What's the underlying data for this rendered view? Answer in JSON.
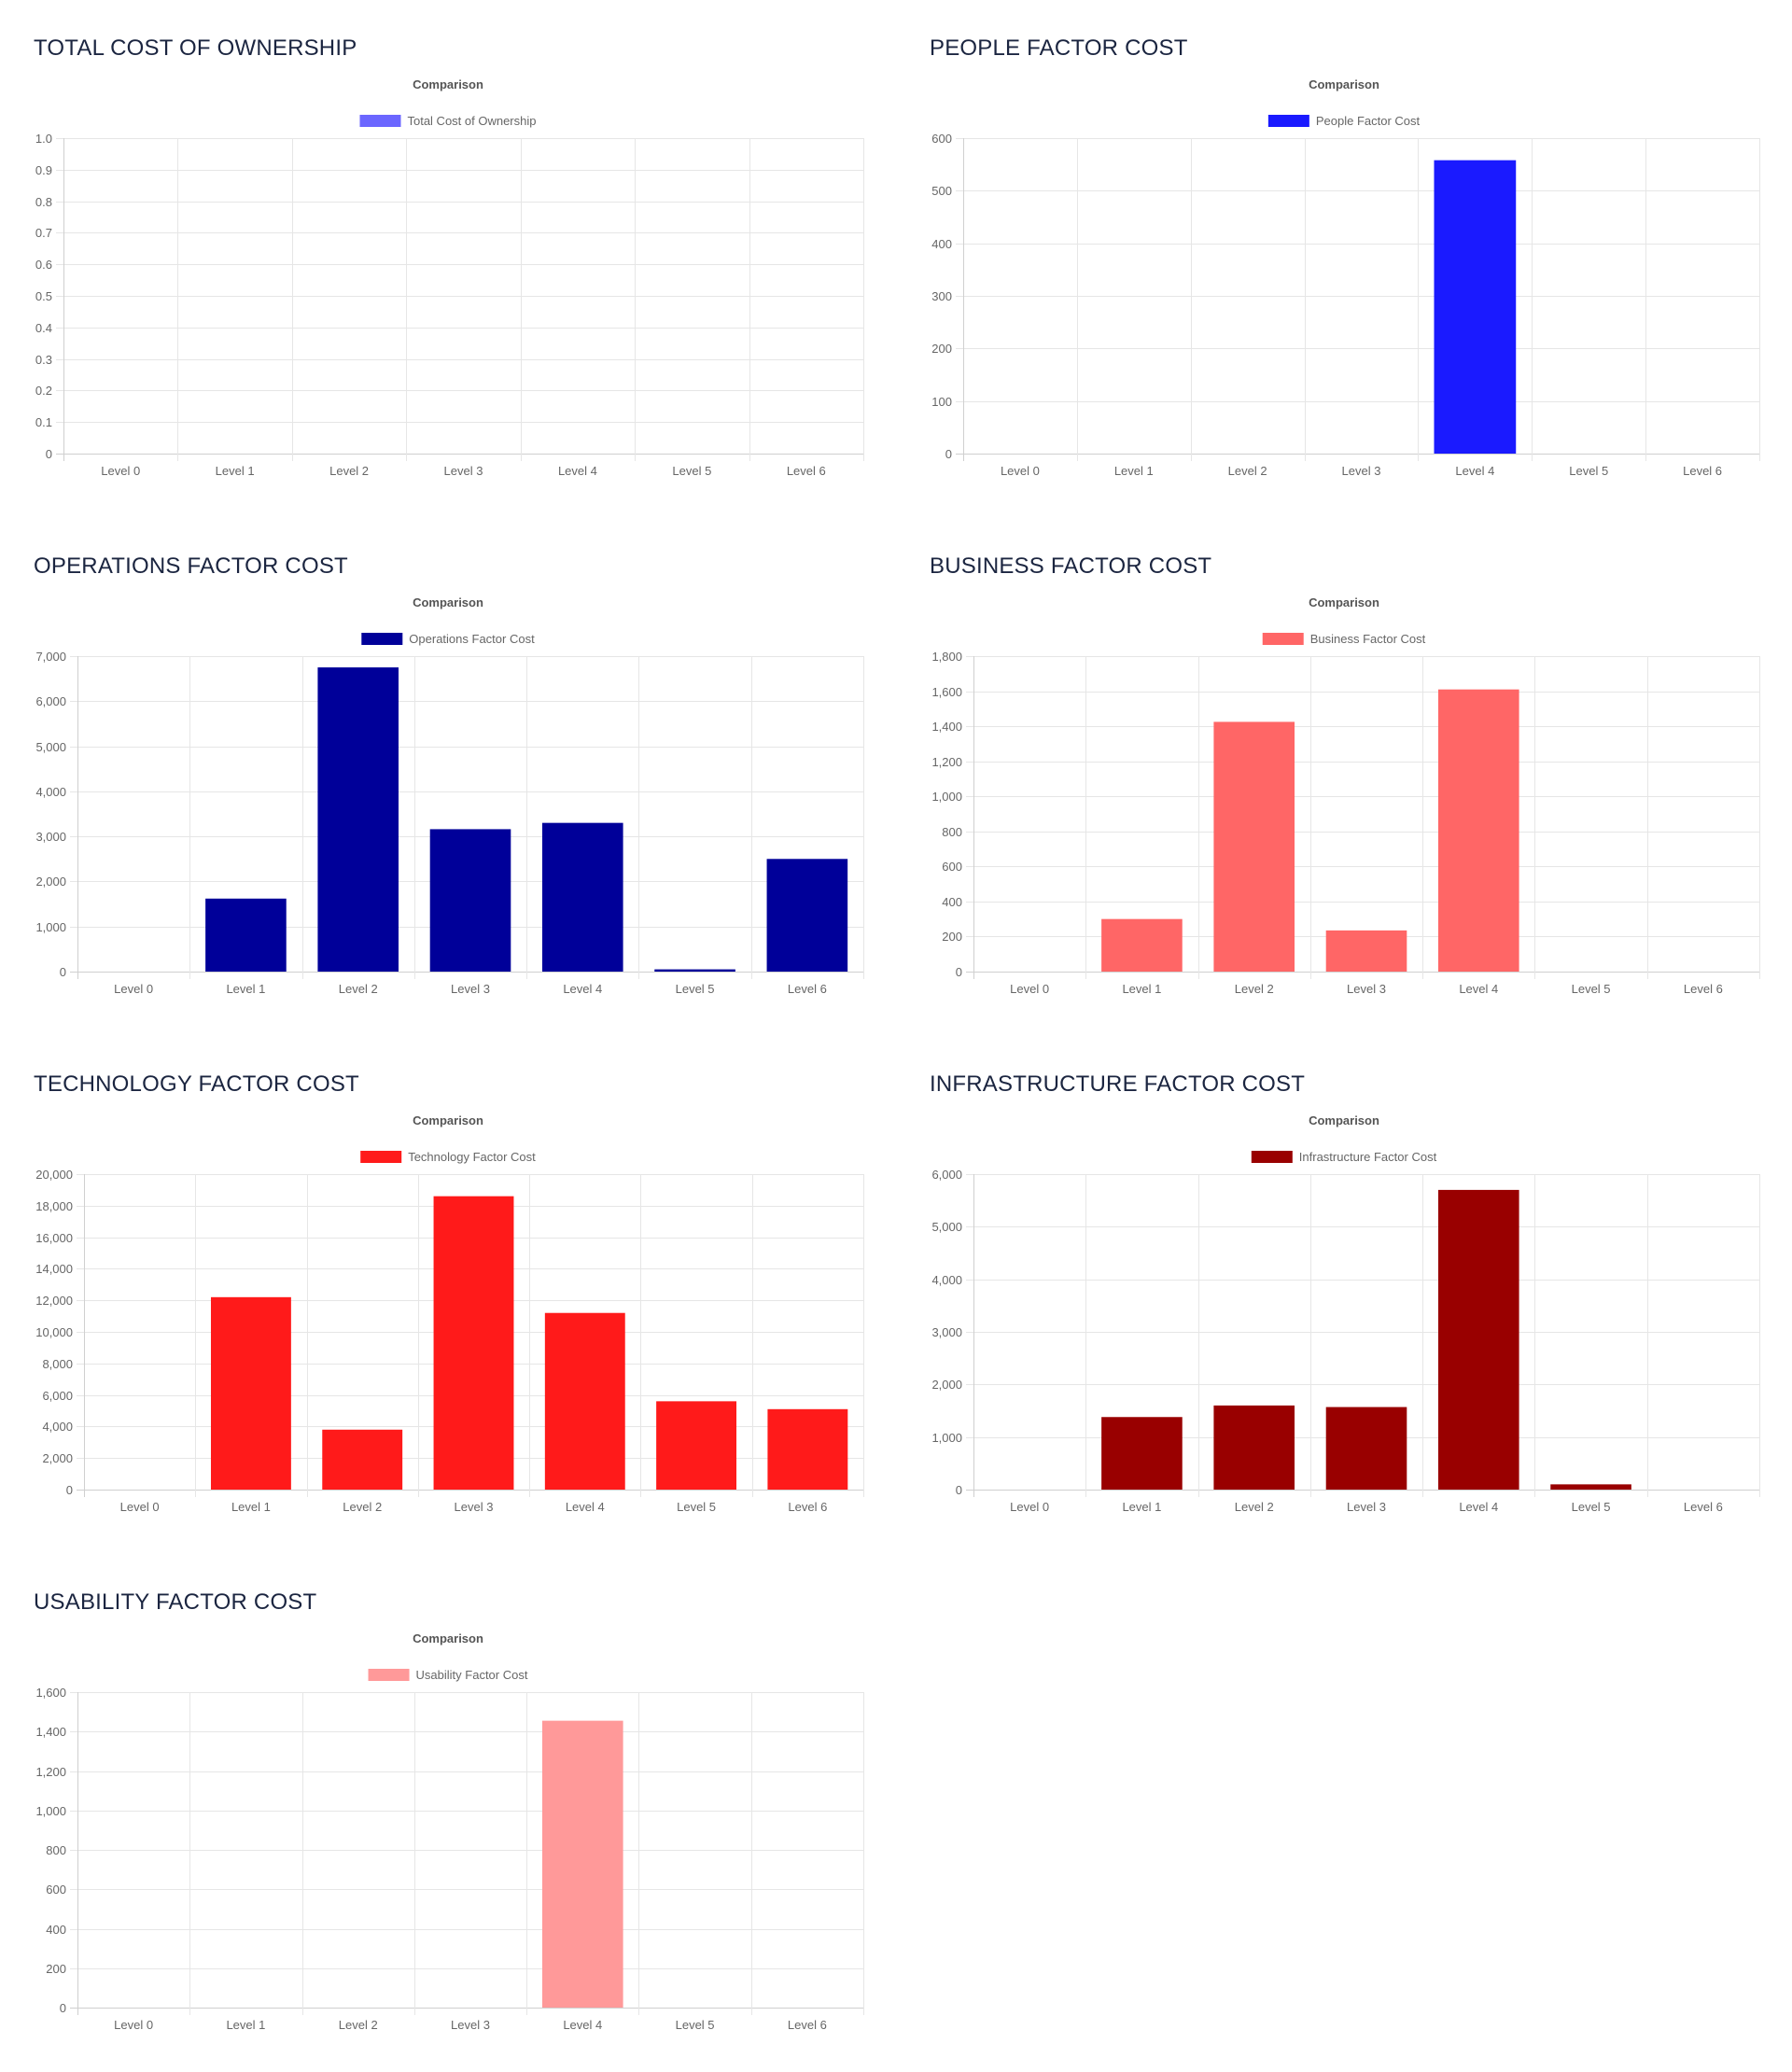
{
  "charts": [
    {
      "title": "TOTAL COST OF OWNERSHIP",
      "chart_data": {
        "type": "bar",
        "title": "Comparison",
        "categories": [
          "Level 0",
          "Level 1",
          "Level 2",
          "Level 3",
          "Level 4",
          "Level 5",
          "Level 6"
        ],
        "series": [
          {
            "name": "Total Cost of Ownership",
            "color": "#6b66ff",
            "values": [
              0,
              0,
              0,
              0,
              0,
              0,
              0
            ]
          }
        ],
        "ylim": [
          0,
          1.0
        ],
        "yticks": [
          0,
          0.1,
          0.2,
          0.3,
          0.4,
          0.5,
          0.6,
          0.7,
          0.8,
          0.9,
          1.0
        ],
        "ytick_labels": [
          "0",
          "0.1",
          "0.2",
          "0.3",
          "0.4",
          "0.5",
          "0.6",
          "0.7",
          "0.8",
          "0.9",
          "1.0"
        ],
        "legend": "top-center",
        "grid": true
      }
    },
    {
      "title": "PEOPLE FACTOR COST",
      "chart_data": {
        "type": "bar",
        "title": "Comparison",
        "categories": [
          "Level 0",
          "Level 1",
          "Level 2",
          "Level 3",
          "Level 4",
          "Level 5",
          "Level 6"
        ],
        "series": [
          {
            "name": "People Factor Cost",
            "color": "#1a1aff",
            "values": [
              0,
              0,
              0,
              0,
              558,
              0,
              0
            ]
          }
        ],
        "ylim": [
          0,
          600
        ],
        "yticks": [
          0,
          100,
          200,
          300,
          400,
          500,
          600
        ],
        "ytick_labels": [
          "0",
          "100",
          "200",
          "300",
          "400",
          "500",
          "600"
        ],
        "legend": "top-center",
        "grid": true
      }
    },
    {
      "title": "OPERATIONS FACTOR COST",
      "chart_data": {
        "type": "bar",
        "title": "Comparison",
        "categories": [
          "Level 0",
          "Level 1",
          "Level 2",
          "Level 3",
          "Level 4",
          "Level 5",
          "Level 6"
        ],
        "series": [
          {
            "name": "Operations Factor Cost",
            "color": "#000099",
            "values": [
              0,
              1620,
              6750,
              3160,
              3300,
              50,
              2500
            ]
          }
        ],
        "ylim": [
          0,
          7000
        ],
        "yticks": [
          0,
          1000,
          2000,
          3000,
          4000,
          5000,
          6000,
          7000
        ],
        "ytick_labels": [
          "0",
          "1,000",
          "2,000",
          "3,000",
          "4,000",
          "5,000",
          "6,000",
          "7,000"
        ],
        "legend": "top-center",
        "grid": true
      }
    },
    {
      "title": "BUSINESS FACTOR COST",
      "chart_data": {
        "type": "bar",
        "title": "Comparison",
        "categories": [
          "Level 0",
          "Level 1",
          "Level 2",
          "Level 3",
          "Level 4",
          "Level 5",
          "Level 6"
        ],
        "series": [
          {
            "name": "Business Factor Cost",
            "color": "#ff6666",
            "values": [
              0,
              300,
              1425,
              235,
              1610,
              0,
              0
            ]
          }
        ],
        "ylim": [
          0,
          1800
        ],
        "yticks": [
          0,
          200,
          400,
          600,
          800,
          1000,
          1200,
          1400,
          1600,
          1800
        ],
        "ytick_labels": [
          "0",
          "200",
          "400",
          "600",
          "800",
          "1,000",
          "1,200",
          "1,400",
          "1,600",
          "1,800"
        ],
        "legend": "top-center",
        "grid": true
      }
    },
    {
      "title": "TECHNOLOGY FACTOR COST",
      "chart_data": {
        "type": "bar",
        "title": "Comparison",
        "categories": [
          "Level 0",
          "Level 1",
          "Level 2",
          "Level 3",
          "Level 4",
          "Level 5",
          "Level 6"
        ],
        "series": [
          {
            "name": "Technology Factor Cost",
            "color": "#ff1a1a",
            "values": [
              0,
              12200,
              3800,
              18600,
              11200,
              5600,
              5100
            ]
          }
        ],
        "ylim": [
          0,
          20000
        ],
        "yticks": [
          0,
          2000,
          4000,
          6000,
          8000,
          10000,
          12000,
          14000,
          16000,
          18000,
          20000
        ],
        "ytick_labels": [
          "0",
          "2,000",
          "4,000",
          "6,000",
          "8,000",
          "10,000",
          "12,000",
          "14,000",
          "16,000",
          "18,000",
          "20,000"
        ],
        "legend": "top-center",
        "grid": true
      }
    },
    {
      "title": "INFRASTRUCTURE FACTOR COST",
      "chart_data": {
        "type": "bar",
        "title": "Comparison",
        "categories": [
          "Level 0",
          "Level 1",
          "Level 2",
          "Level 3",
          "Level 4",
          "Level 5",
          "Level 6"
        ],
        "series": [
          {
            "name": "Infrastructure Factor Cost",
            "color": "#990000",
            "values": [
              0,
              1380,
              1600,
              1570,
              5700,
              100,
              0
            ]
          }
        ],
        "ylim": [
          0,
          6000
        ],
        "yticks": [
          0,
          1000,
          2000,
          3000,
          4000,
          5000,
          6000
        ],
        "ytick_labels": [
          "0",
          "1,000",
          "2,000",
          "3,000",
          "4,000",
          "5,000",
          "6,000"
        ],
        "legend": "top-center",
        "grid": true
      }
    },
    {
      "title": "USABILITY FACTOR COST",
      "chart_data": {
        "type": "bar",
        "title": "Comparison",
        "categories": [
          "Level 0",
          "Level 1",
          "Level 2",
          "Level 3",
          "Level 4",
          "Level 5",
          "Level 6"
        ],
        "series": [
          {
            "name": "Usability Factor Cost",
            "color": "#ff9999",
            "values": [
              0,
              0,
              0,
              0,
              1455,
              0,
              0
            ]
          }
        ],
        "ylim": [
          0,
          1600
        ],
        "yticks": [
          0,
          200,
          400,
          600,
          800,
          1000,
          1200,
          1400,
          1600
        ],
        "ytick_labels": [
          "0",
          "200",
          "400",
          "600",
          "800",
          "1,000",
          "1,200",
          "1,400",
          "1,600"
        ],
        "legend": "top-center",
        "grid": true
      }
    }
  ]
}
